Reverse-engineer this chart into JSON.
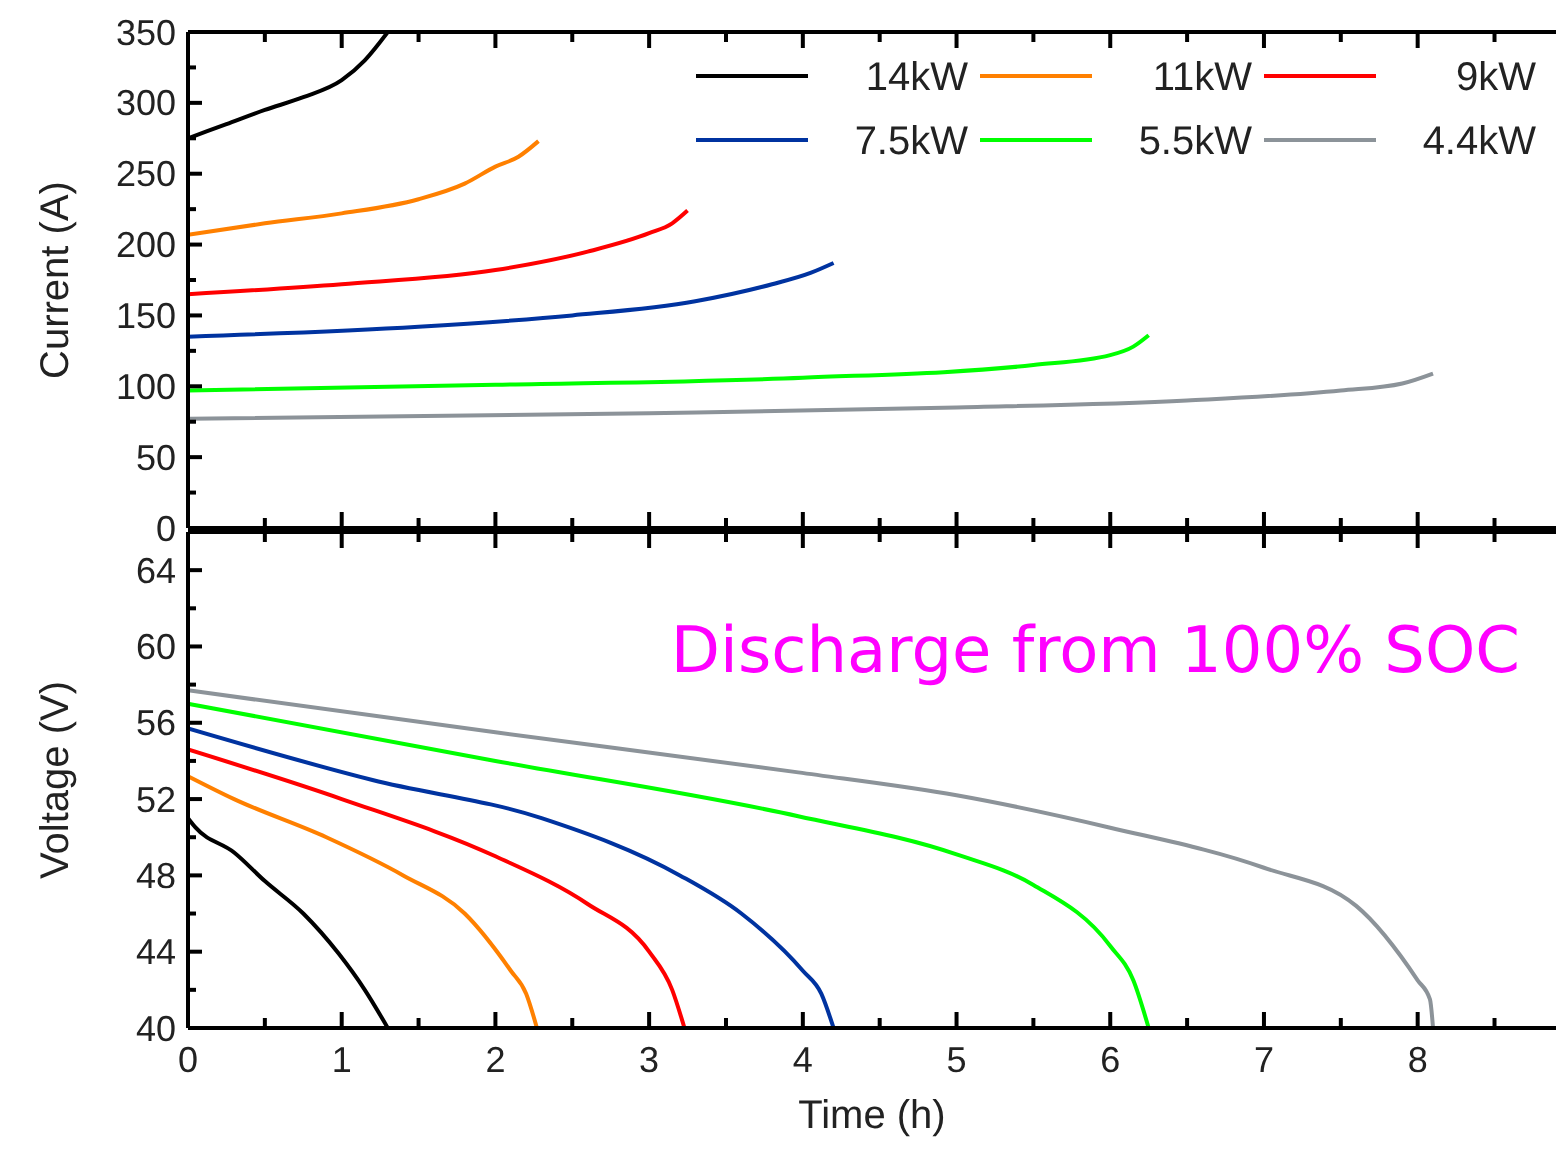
{
  "chart_data": [
    {
      "type": "line",
      "ylabel": "Current (A)",
      "xlim": [
        0,
        8.9
      ],
      "xticks": [
        0,
        {
          "value": 0.5,
          "label": null
        },
        1,
        {
          "value": 1.5,
          "label": null
        },
        2,
        {
          "value": 2.5,
          "label": null
        },
        3,
        {
          "value": 3.5,
          "label": null
        },
        4,
        {
          "value": 4.5,
          "label": null
        },
        5,
        {
          "value": 5.5,
          "label": null
        },
        6,
        {
          "value": 6.5,
          "label": null
        },
        7,
        {
          "value": 7.5,
          "label": null
        },
        8,
        {
          "value": 8.5,
          "label": null
        }
      ],
      "ylim": [
        0,
        350
      ],
      "yticks": [
        0,
        {
          "value": 25,
          "label": null
        },
        50,
        {
          "value": 75,
          "label": null
        },
        100,
        {
          "value": 125,
          "label": null
        },
        150,
        {
          "value": 175,
          "label": null
        },
        200,
        {
          "value": 225,
          "label": null
        },
        250,
        {
          "value": 275,
          "label": null
        },
        300,
        {
          "value": 325,
          "label": null
        },
        350
      ],
      "tick_labels": "y",
      "legend": "top right",
      "grid": false,
      "series": [
        {
          "name": "14kW",
          "color": "#000000",
          "x": [
            0,
            0.25,
            0.5,
            0.75,
            1.0,
            1.15,
            1.3
          ],
          "values": [
            275,
            285,
            295,
            304,
            316,
            330,
            350
          ]
        },
        {
          "name": "11kW",
          "color": "#ff8000",
          "x": [
            0,
            0.5,
            1.0,
            1.5,
            1.8,
            2.0,
            2.15,
            2.28
          ],
          "values": [
            207,
            215,
            222,
            232,
            243,
            255,
            262,
            273
          ]
        },
        {
          "name": "9kW",
          "color": "#ff0000",
          "x": [
            0,
            1.0,
            2.0,
            2.6,
            3.0,
            3.15,
            3.25
          ],
          "values": [
            165,
            172,
            182,
            195,
            208,
            215,
            224
          ]
        },
        {
          "name": "7.5kW",
          "color": "#0033a0",
          "x": [
            0,
            1.5,
            2.5,
            3.3,
            3.8,
            4.05,
            4.2
          ],
          "values": [
            135,
            142,
            150,
            160,
            172,
            180,
            187
          ]
        },
        {
          "name": "5.5kW",
          "color": "#00ff00",
          "x": [
            0,
            2,
            4,
            5.5,
            6.0,
            6.15,
            6.25
          ],
          "values": [
            97,
            101,
            106,
            115,
            122,
            128,
            136
          ]
        },
        {
          "name": "4.4kW",
          "color": "#8c9399",
          "x": [
            0,
            3,
            5,
            6.5,
            7.5,
            7.9,
            8.1
          ],
          "values": [
            77,
            81,
            85,
            90,
            97,
            102,
            109
          ]
        }
      ]
    },
    {
      "type": "line",
      "xlabel": "Time (h)",
      "ylabel": "Voltage (V)",
      "annotations": [
        "Discharge from 100% SOC"
      ],
      "xlim": [
        0,
        8.9
      ],
      "xticks": [
        0,
        {
          "value": 0.5,
          "label": null
        },
        1,
        {
          "value": 1.5,
          "label": null
        },
        2,
        {
          "value": 2.5,
          "label": null
        },
        3,
        {
          "value": 3.5,
          "label": null
        },
        4,
        {
          "value": 4.5,
          "label": null
        },
        5,
        {
          "value": 5.5,
          "label": null
        },
        6,
        {
          "value": 6.5,
          "label": null
        },
        7,
        {
          "value": 7.5,
          "label": null
        },
        8,
        {
          "value": 8.5,
          "label": null
        }
      ],
      "ylim": [
        40,
        66
      ],
      "yticks": [
        40,
        {
          "value": 42,
          "label": null
        },
        44,
        {
          "value": 46,
          "label": null
        },
        48,
        {
          "value": 50,
          "label": null
        },
        52,
        {
          "value": 54,
          "label": null
        },
        56,
        {
          "value": 58,
          "label": null
        },
        60,
        {
          "value": 62,
          "label": null
        },
        64
      ],
      "grid": false,
      "series": [
        {
          "color": "#000000",
          "x": [
            0,
            0.05,
            0.3,
            0.5,
            0.75,
            0.98,
            1.15,
            1.3
          ],
          "values": [
            51,
            50.5,
            49.2,
            47.7,
            46,
            43.9,
            42,
            40
          ]
        },
        {
          "color": "#ff8000",
          "x": [
            0,
            0.3,
            0.9,
            1.4,
            1.8,
            2.1,
            2.2,
            2.27
          ],
          "values": [
            53.2,
            52,
            50,
            48,
            46,
            43,
            41.8,
            40
          ]
        },
        {
          "color": "#ff0000",
          "x": [
            0,
            1.0,
            2.0,
            2.6,
            3.0,
            3.15,
            3.23
          ],
          "values": [
            54.6,
            52,
            49,
            46.5,
            44,
            42,
            40
          ]
        },
        {
          "color": "#0033a0",
          "x": [
            0,
            1.2,
            2.3,
            3.2,
            3.6,
            4.0,
            4.12,
            4.2
          ],
          "values": [
            55.7,
            53,
            51,
            48,
            46,
            43,
            41.8,
            40
          ]
        },
        {
          "color": "#00ff00",
          "x": [
            0,
            2,
            3.97,
            5,
            5.5,
            6.0,
            6.15,
            6.25
          ],
          "values": [
            57,
            54,
            51.1,
            49.1,
            47.5,
            44.3,
            42.5,
            40
          ]
        },
        {
          "color": "#8c9399",
          "x": [
            0,
            2,
            3.97,
            5,
            6,
            7,
            7.6,
            8,
            8.08,
            8.1
          ],
          "values": [
            57.7,
            55.5,
            53.4,
            52.2,
            50.5,
            48.4,
            46.4,
            42.5,
            41.5,
            40
          ]
        }
      ]
    }
  ]
}
